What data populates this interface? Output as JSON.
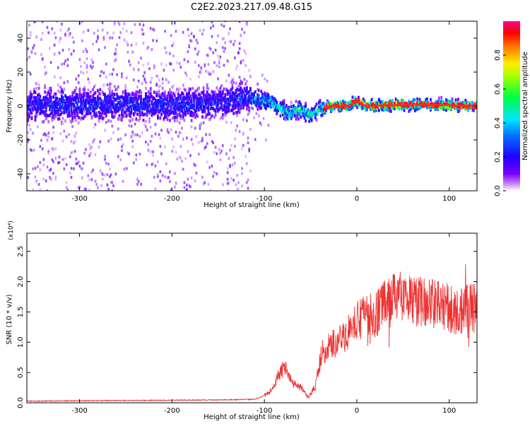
{
  "figure": {
    "title": "C2E2.2023.217.09.48.G15"
  },
  "chart_data": [
    {
      "type": "heatmap",
      "xlabel": "Height of straight line (km)",
      "ylabel": "Frequency (Hz)",
      "xlim": [
        -357,
        130
      ],
      "ylim": [
        -50,
        50
      ],
      "x_ticks": [
        -300,
        -200,
        -100,
        0,
        100
      ],
      "x_tick_labels": [
        "-300",
        "-200",
        "-100",
        "0",
        "100"
      ],
      "y_ticks": [
        -40,
        -20,
        0,
        20,
        40
      ],
      "y_tick_labels": [
        "-40",
        "-20",
        "0",
        "20",
        "40"
      ],
      "colorbar": {
        "label": "Normalized spectral amplitude",
        "range": [
          0,
          1
        ],
        "ticks": [
          0.0,
          0.2,
          0.4,
          0.6,
          0.8
        ],
        "tick_labels": [
          "0.0",
          "0.2",
          "0.4",
          "0.6",
          "0.8"
        ],
        "colormap": "rainbow (white-violet-blue-cyan-green-yellow-red-magenta)"
      },
      "centerline": [
        {
          "x": -357,
          "y": 0
        },
        {
          "x": -300,
          "y": 1
        },
        {
          "x": -250,
          "y": 1
        },
        {
          "x": -200,
          "y": 0
        },
        {
          "x": -150,
          "y": 2
        },
        {
          "x": -120,
          "y": 5
        },
        {
          "x": -110,
          "y": 4
        },
        {
          "x": -95,
          "y": 2
        },
        {
          "x": -80,
          "y": -2
        },
        {
          "x": -72,
          "y": -5
        },
        {
          "x": -68,
          "y": -3
        },
        {
          "x": -60,
          "y": -2
        },
        {
          "x": -50,
          "y": -6
        },
        {
          "x": -45,
          "y": -4
        },
        {
          "x": -40,
          "y": -2
        },
        {
          "x": -30,
          "y": 0
        },
        {
          "x": -10,
          "y": 0
        },
        {
          "x": 0,
          "y": 3
        },
        {
          "x": 10,
          "y": 0
        },
        {
          "x": 60,
          "y": 1
        },
        {
          "x": 130,
          "y": 0
        }
      ],
      "grid": false
    },
    {
      "type": "line",
      "xlabel": "Height of straight line (km)",
      "ylabel": "SNR (10 * v/v)",
      "y_multiplier_label": "(x10⁴)",
      "xlim": [
        -357,
        130
      ],
      "ylim": [
        0,
        2.8
      ],
      "x_ticks": [
        -300,
        -200,
        -100,
        0,
        100
      ],
      "x_tick_labels": [
        "-300",
        "-200",
        "-100",
        "0",
        "100"
      ],
      "y_ticks": [
        0.0,
        0.5,
        1.0,
        1.5,
        2.0,
        2.5
      ],
      "y_tick_labels": [
        "0.0",
        "0.5",
        "1.0",
        "1.5",
        "2.0",
        "2.5"
      ],
      "series": [
        {
          "color": "#ee3333",
          "envelope": [
            {
              "x": -357,
              "y": 0.02
            },
            {
              "x": -250,
              "y": 0.03
            },
            {
              "x": -150,
              "y": 0.04
            },
            {
              "x": -110,
              "y": 0.05
            },
            {
              "x": -95,
              "y": 0.15
            },
            {
              "x": -85,
              "y": 0.4
            },
            {
              "x": -78,
              "y": 0.55
            },
            {
              "x": -70,
              "y": 0.3
            },
            {
              "x": -60,
              "y": 0.22
            },
            {
              "x": -52,
              "y": 0.08
            },
            {
              "x": -45,
              "y": 0.25
            },
            {
              "x": -38,
              "y": 0.75
            },
            {
              "x": -30,
              "y": 0.85
            },
            {
              "x": -20,
              "y": 0.9
            },
            {
              "x": -10,
              "y": 1.05
            },
            {
              "x": 0,
              "y": 1.2
            },
            {
              "x": 15,
              "y": 1.35
            },
            {
              "x": 30,
              "y": 1.55
            },
            {
              "x": 45,
              "y": 1.75
            },
            {
              "x": 60,
              "y": 1.65
            },
            {
              "x": 75,
              "y": 1.6
            },
            {
              "x": 90,
              "y": 1.55
            },
            {
              "x": 105,
              "y": 1.5
            },
            {
              "x": 130,
              "y": 1.55
            }
          ]
        }
      ],
      "grid": false
    }
  ]
}
